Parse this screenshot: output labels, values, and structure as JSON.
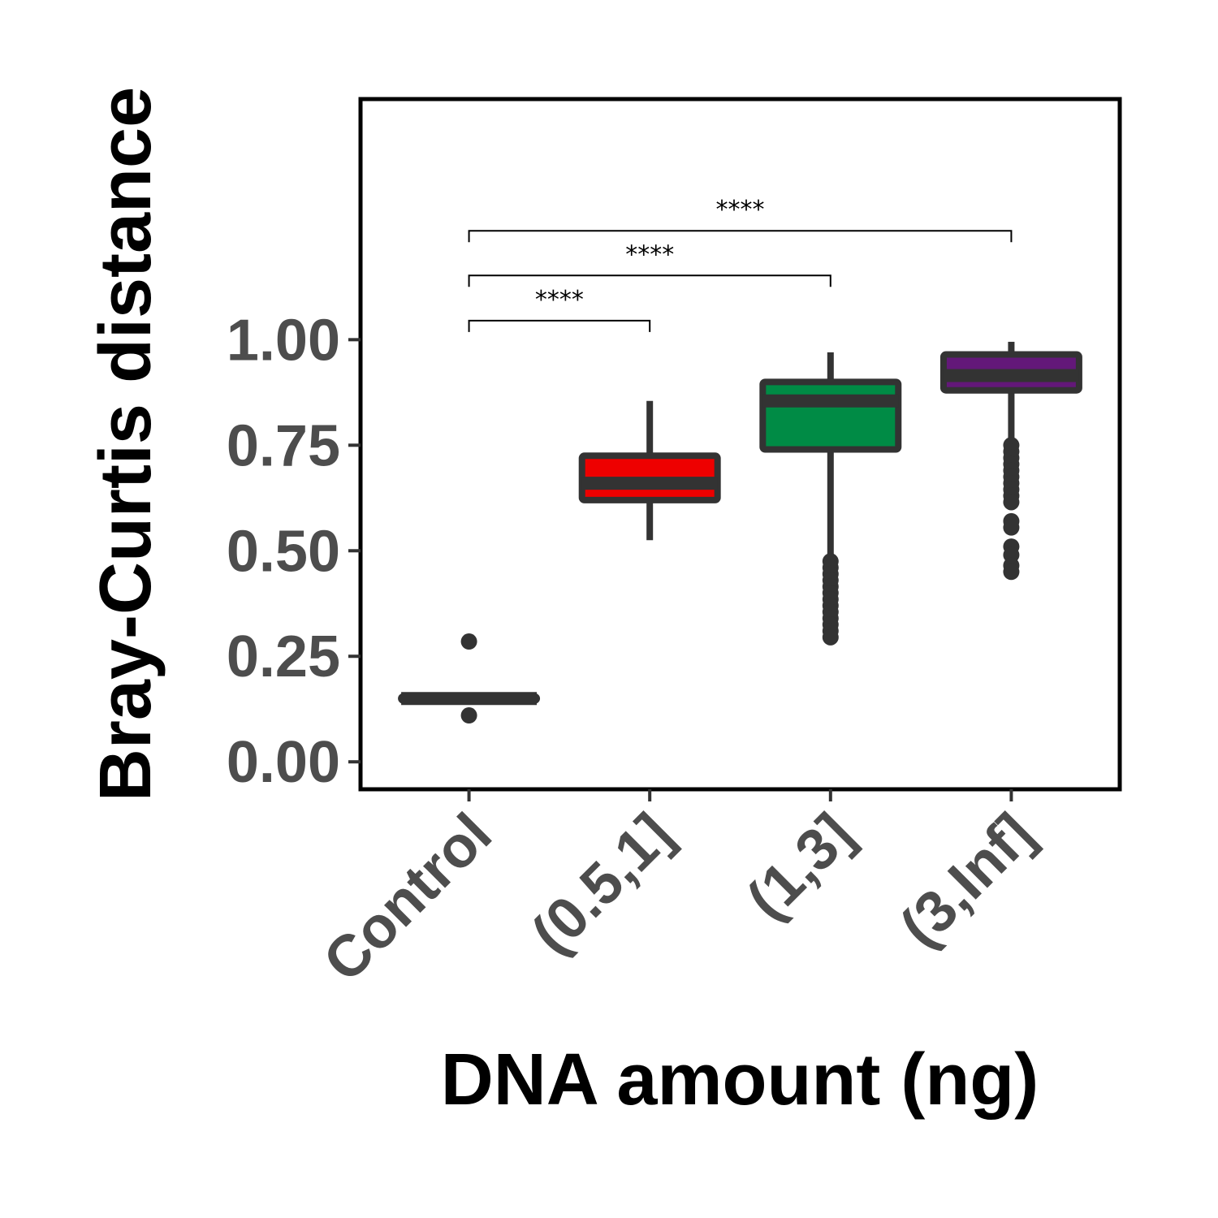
{
  "chart_data": {
    "type": "box",
    "title": "",
    "xlabel": "DNA amount (ng)",
    "ylabel": "Bray-Curtis distance",
    "ylim": [
      -0.065,
      1.57
    ],
    "yticks": [
      "0.00",
      "0.25",
      "0.50",
      "0.75",
      "1.00"
    ],
    "grid": false,
    "legend": "none",
    "categories": [
      "Control",
      "(0.5,1]",
      "(1,3]",
      "(3,Inf]"
    ],
    "boxes": [
      {
        "category": "Control",
        "color": "#333333",
        "min": 0.145,
        "q1": 0.145,
        "median": 0.15,
        "q3": 0.155,
        "max": 0.155,
        "outliers": [
          0.285,
          0.11
        ]
      },
      {
        "category": "(0.5,1]",
        "color": "#ee0000",
        "min": 0.525,
        "q1": 0.62,
        "median": 0.66,
        "q3": 0.725,
        "max": 0.855,
        "outliers": []
      },
      {
        "category": "(1,3]",
        "color": "#008b45",
        "min": 0.49,
        "q1": 0.74,
        "median": 0.855,
        "q3": 0.9,
        "max": 0.97,
        "outliers": [
          0.475,
          0.46,
          0.445,
          0.43,
          0.415,
          0.4,
          0.385,
          0.37,
          0.355,
          0.34,
          0.325,
          0.31,
          0.295
        ]
      },
      {
        "category": "(3,Inf]",
        "color": "#631879",
        "min": 0.765,
        "q1": 0.88,
        "median": 0.915,
        "q3": 0.965,
        "max": 0.995,
        "outliers": [
          0.75,
          0.735,
          0.72,
          0.705,
          0.69,
          0.675,
          0.66,
          0.645,
          0.63,
          0.615,
          0.57,
          0.555,
          0.51,
          0.49,
          0.465,
          0.45
        ]
      }
    ],
    "comparisons": [
      {
        "from": "Control",
        "to": "(0.5,1]",
        "y": 1.045,
        "label": "****"
      },
      {
        "from": "Control",
        "to": "(1,3]",
        "y": 1.152,
        "label": "****"
      },
      {
        "from": "Control",
        "to": "(3,Inf]",
        "y": 1.258,
        "label": "****"
      }
    ]
  }
}
